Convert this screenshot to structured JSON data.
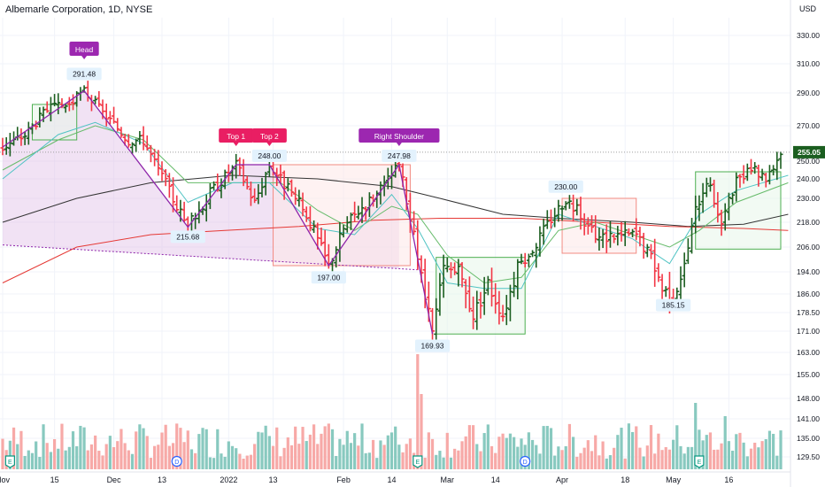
{
  "symbol_title": "Albemarle Corporation, 1D, NYSE",
  "currency": "USD",
  "colors": {
    "up": "#1b5e20",
    "down": "#f23645",
    "vol_up": "#88c9bf",
    "vol_down": "#f7a9a7",
    "ma_black": "#333333",
    "ma_red": "#e53935",
    "ma_teal": "#4fc3c3",
    "ma_green": "#66bb6a",
    "pattern_fill": "#e1bee7",
    "pattern_line": "#8e24aa",
    "box_red": "#f28b82",
    "box_green": "#4caf50",
    "current_price": "#1b5e20"
  },
  "chart_data": {
    "type": "ohlc-bar",
    "y_ticks": [
      330,
      310,
      290,
      270,
      250,
      240,
      230,
      218,
      206,
      194,
      186,
      178.5,
      171,
      163,
      155,
      148,
      141,
      135,
      129.5
    ],
    "x_ticks": [
      {
        "label": "Nov",
        "day": 0
      },
      {
        "label": "15",
        "day": 14
      },
      {
        "label": "Dec",
        "day": 30
      },
      {
        "label": "13",
        "day": 43
      },
      {
        "label": "2022",
        "day": 61
      },
      {
        "label": "13",
        "day": 73
      },
      {
        "label": "Feb",
        "day": 92
      },
      {
        "label": "14",
        "day": 105
      },
      {
        "label": "Mar",
        "day": 120
      },
      {
        "label": "14",
        "day": 133
      },
      {
        "label": "Apr",
        "day": 151
      },
      {
        "label": "18",
        "day": 168
      },
      {
        "label": "May",
        "day": 181
      },
      {
        "label": "16",
        "day": 196
      }
    ],
    "anchors": [
      {
        "day": 0,
        "price": 258
      },
      {
        "day": 6,
        "price": 265
      },
      {
        "day": 12,
        "price": 280
      },
      {
        "day": 18,
        "price": 283
      },
      {
        "day": 22,
        "price": 291.48
      },
      {
        "day": 27,
        "price": 278
      },
      {
        "day": 34,
        "price": 262
      },
      {
        "day": 38,
        "price": 262
      },
      {
        "day": 42,
        "price": 245
      },
      {
        "day": 46,
        "price": 230
      },
      {
        "day": 50,
        "price": 215.68
      },
      {
        "day": 56,
        "price": 233
      },
      {
        "day": 63,
        "price": 248
      },
      {
        "day": 68,
        "price": 228
      },
      {
        "day": 72,
        "price": 248
      },
      {
        "day": 78,
        "price": 232
      },
      {
        "day": 82,
        "price": 222
      },
      {
        "day": 88,
        "price": 197
      },
      {
        "day": 92,
        "price": 215
      },
      {
        "day": 96,
        "price": 224
      },
      {
        "day": 102,
        "price": 234
      },
      {
        "day": 107,
        "price": 247.98
      },
      {
        "day": 110,
        "price": 220
      },
      {
        "day": 113,
        "price": 192
      },
      {
        "day": 116,
        "price": 169.93
      },
      {
        "day": 119,
        "price": 196
      },
      {
        "day": 123,
        "price": 194
      },
      {
        "day": 127,
        "price": 178
      },
      {
        "day": 131,
        "price": 190
      },
      {
        "day": 135,
        "price": 178
      },
      {
        "day": 139,
        "price": 196
      },
      {
        "day": 143,
        "price": 205
      },
      {
        "day": 148,
        "price": 220
      },
      {
        "day": 152,
        "price": 230
      },
      {
        "day": 156,
        "price": 222
      },
      {
        "day": 160,
        "price": 210
      },
      {
        "day": 165,
        "price": 212
      },
      {
        "day": 171,
        "price": 212
      },
      {
        "day": 175,
        "price": 201
      },
      {
        "day": 178,
        "price": 188
      },
      {
        "day": 181,
        "price": 185.15
      },
      {
        "day": 184,
        "price": 197
      },
      {
        "day": 187,
        "price": 224
      },
      {
        "day": 190,
        "price": 240
      },
      {
        "day": 194,
        "price": 218
      },
      {
        "day": 198,
        "price": 238
      },
      {
        "day": 202,
        "price": 245
      },
      {
        "day": 206,
        "price": 241
      },
      {
        "day": 210,
        "price": 255.05
      }
    ],
    "moving_averages": [
      {
        "name": "ma200",
        "color": "#333333",
        "points": [
          [
            0,
            218
          ],
          [
            20,
            230
          ],
          [
            40,
            238
          ],
          [
            62,
            242
          ],
          [
            85,
            240
          ],
          [
            105,
            236
          ],
          [
            118,
            230
          ],
          [
            135,
            222
          ],
          [
            150,
            220
          ],
          [
            170,
            218
          ],
          [
            185,
            216
          ],
          [
            200,
            217
          ],
          [
            212,
            222
          ]
        ]
      },
      {
        "name": "ma100",
        "color": "#e53935",
        "points": [
          [
            0,
            190
          ],
          [
            20,
            206
          ],
          [
            40,
            212
          ],
          [
            60,
            214
          ],
          [
            80,
            216
          ],
          [
            100,
            219
          ],
          [
            118,
            220
          ],
          [
            140,
            220
          ],
          [
            160,
            218
          ],
          [
            180,
            216
          ],
          [
            200,
            215
          ],
          [
            212,
            214
          ]
        ]
      },
      {
        "name": "ma20",
        "color": "#66bb6a",
        "points": [
          [
            0,
            245
          ],
          [
            15,
            262
          ],
          [
            25,
            270
          ],
          [
            38,
            262
          ],
          [
            50,
            238
          ],
          [
            62,
            238
          ],
          [
            75,
            238
          ],
          [
            85,
            224
          ],
          [
            95,
            214
          ],
          [
            105,
            226
          ],
          [
            112,
            222
          ],
          [
            120,
            202
          ],
          [
            130,
            190
          ],
          [
            140,
            192
          ],
          [
            150,
            214
          ],
          [
            160,
            218
          ],
          [
            170,
            212
          ],
          [
            180,
            206
          ],
          [
            188,
            214
          ],
          [
            198,
            228
          ],
          [
            212,
            238
          ]
        ]
      },
      {
        "name": "ma10",
        "color": "#4fc3c3",
        "points": [
          [
            0,
            240
          ],
          [
            15,
            265
          ],
          [
            25,
            272
          ],
          [
            38,
            260
          ],
          [
            50,
            228
          ],
          [
            62,
            238
          ],
          [
            72,
            238
          ],
          [
            85,
            215
          ],
          [
            95,
            212
          ],
          [
            105,
            232
          ],
          [
            112,
            215
          ],
          [
            120,
            190
          ],
          [
            130,
            188
          ],
          [
            140,
            188
          ],
          [
            150,
            222
          ],
          [
            160,
            216
          ],
          [
            170,
            210
          ],
          [
            180,
            198
          ],
          [
            188,
            222
          ],
          [
            198,
            234
          ],
          [
            212,
            242
          ]
        ]
      }
    ],
    "head_and_shoulders": [
      {
        "day": 0,
        "price": 258
      },
      {
        "day": 22,
        "price": 291.48
      },
      {
        "day": 50,
        "price": 215.68
      },
      {
        "day": 63,
        "price": 248.0
      },
      {
        "day": 72,
        "price": 248.0
      },
      {
        "day": 88,
        "price": 197.0
      },
      {
        "day": 107,
        "price": 247.98
      },
      {
        "day": 116,
        "price": 169.93
      }
    ],
    "neckline": [
      {
        "day": 0,
        "price": 207
      },
      {
        "day": 112,
        "price": 195
      }
    ],
    "boxes": [
      {
        "name": "box-topping",
        "kind": "red",
        "d0": 73,
        "d1": 110,
        "p0": 248,
        "p1": 197
      },
      {
        "name": "box-consolidation-1",
        "kind": "green",
        "d0": 8,
        "d1": 20,
        "p0": 283,
        "p1": 262
      },
      {
        "name": "box-march-base",
        "kind": "green",
        "d0": 117,
        "d1": 141,
        "p0": 201,
        "p1": 169.93
      },
      {
        "name": "box-april",
        "kind": "red",
        "d0": 151,
        "d1": 171,
        "p0": 230,
        "p1": 203
      },
      {
        "name": "box-may",
        "kind": "green",
        "d0": 187,
        "d1": 210,
        "p0": 244,
        "p1": 205
      }
    ],
    "labels": [
      {
        "name": "label-head",
        "text": "Head",
        "kind": "purple",
        "day": 22,
        "price": 320
      },
      {
        "name": "label-top-1",
        "text": "Top 1",
        "kind": "pink",
        "day": 63,
        "price": 264
      },
      {
        "name": "label-top-2",
        "text": "Top 2",
        "kind": "pink",
        "day": 72,
        "price": 264
      },
      {
        "name": "label-right-shoulder",
        "text": "Right Shoulder",
        "kind": "purple",
        "day": 107,
        "price": 264
      }
    ],
    "price_labels": [
      {
        "name": "price-label-291",
        "text": "291.48",
        "day": 22,
        "price": 303
      },
      {
        "name": "price-label-248",
        "text": "248.00",
        "day": 72,
        "price": 253
      },
      {
        "name": "price-label-24798",
        "text": "247.98",
        "day": 107,
        "price": 253
      },
      {
        "name": "price-label-21568",
        "text": "215.68",
        "day": 50,
        "price": 211
      },
      {
        "name": "price-label-197",
        "text": "197.00",
        "day": 88,
        "price": 192
      },
      {
        "name": "price-label-16993",
        "text": "169.93",
        "day": 116,
        "price": 165.5
      },
      {
        "name": "price-label-230",
        "text": "230.00",
        "day": 152,
        "price": 236
      },
      {
        "name": "price-label-18515",
        "text": "185.15",
        "day": 181,
        "price": 181.5
      }
    ],
    "current_price": {
      "text": "255.05",
      "value": 255.05
    },
    "events": [
      {
        "name": "event-earnings-1",
        "letter": "E",
        "day": 2
      },
      {
        "name": "event-dividend-1",
        "letter": "D",
        "day": 47
      },
      {
        "name": "event-earnings-2",
        "letter": "E",
        "day": 112
      },
      {
        "name": "event-dividend-2",
        "letter": "D",
        "day": 141
      },
      {
        "name": "event-earnings-3",
        "letter": "E",
        "day": 188
      }
    ]
  }
}
